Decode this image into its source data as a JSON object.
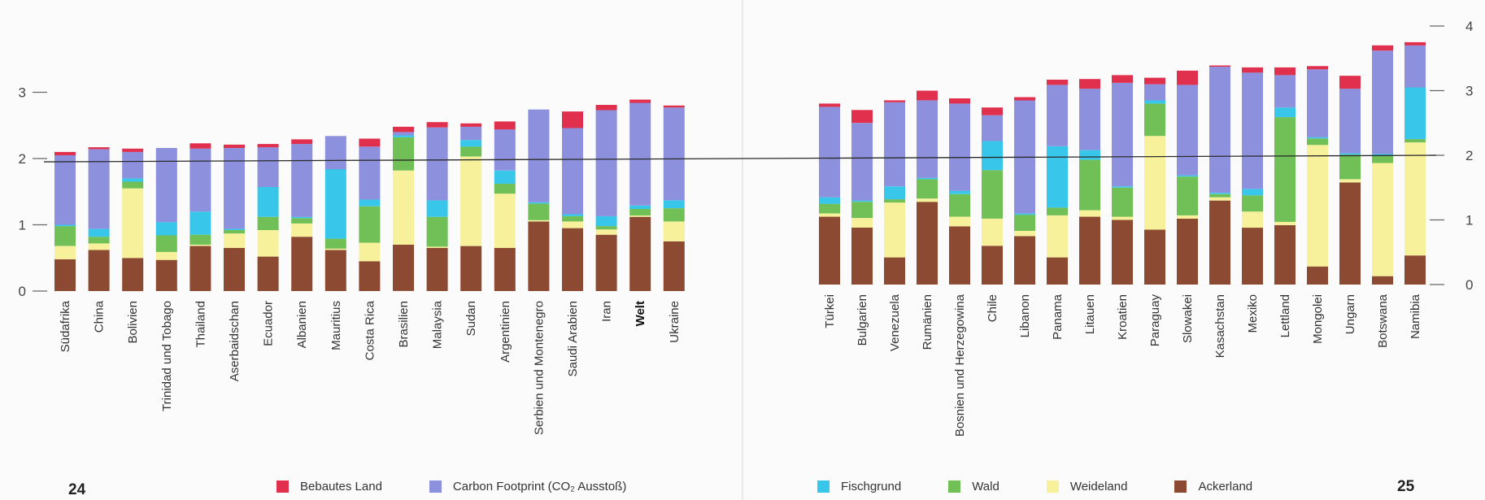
{
  "pages": {
    "left": "24",
    "right": "25"
  },
  "legend": {
    "left": [
      {
        "label": "Bebautes Land",
        "color": "#e0304e"
      },
      {
        "label": "Carbon Footprint (CO₂ Ausstoß)",
        "color": "#8d90dc"
      }
    ],
    "right": [
      {
        "label": "Fischgrund",
        "color": "#38c6ea"
      },
      {
        "label": "Wald",
        "color": "#70bf57"
      },
      {
        "label": "Weideland",
        "color": "#f6f19a"
      },
      {
        "label": "Ackerland",
        "color": "#8c4a32"
      }
    ]
  },
  "chart_data": [
    {
      "type": "bar",
      "stacked": true,
      "title": "",
      "xlabel": "",
      "ylabel": "",
      "ylim": [
        0,
        3
      ],
      "yticks": [
        0,
        1,
        2,
        3
      ],
      "reference_line": 1.95,
      "categories": [
        "Südafrika",
        "China",
        "Bolivien",
        "Trinidad und Tobago",
        "Thailand",
        "Aserbaidschan",
        "Ecuador",
        "Albanien",
        "Mauritius",
        "Costa Rica",
        "Brasilien",
        "Malaysia",
        "Sudan",
        "Argentinien",
        "Serbien und Montenegro",
        "Saudi Arabien",
        "Iran",
        "Welt",
        "Ukraine"
      ],
      "bold_category": "Welt",
      "series": [
        {
          "name": "Ackerland",
          "color": "#8c4a32",
          "values": [
            0.48,
            0.62,
            0.5,
            0.47,
            0.68,
            0.65,
            0.52,
            0.82,
            0.62,
            0.45,
            0.7,
            0.65,
            0.68,
            0.65,
            1.05,
            0.95,
            0.85,
            1.12,
            0.75
          ]
        },
        {
          "name": "Weideland",
          "color": "#f6f19a",
          "values": [
            0.2,
            0.1,
            1.05,
            0.12,
            0.02,
            0.22,
            0.4,
            0.2,
            0.02,
            0.28,
            1.12,
            0.02,
            1.35,
            0.82,
            0.02,
            0.1,
            0.08,
            0.02,
            0.3
          ]
        },
        {
          "name": "Wald",
          "color": "#70bf57",
          "values": [
            0.3,
            0.1,
            0.1,
            0.25,
            0.15,
            0.05,
            0.2,
            0.08,
            0.15,
            0.55,
            0.5,
            0.45,
            0.15,
            0.15,
            0.25,
            0.08,
            0.05,
            0.1,
            0.2
          ]
        },
        {
          "name": "Fischgrund",
          "color": "#38c6ea",
          "values": [
            0.02,
            0.12,
            0.05,
            0.2,
            0.35,
            0.02,
            0.45,
            0.02,
            1.05,
            0.1,
            0.03,
            0.25,
            0.1,
            0.2,
            0.02,
            0.03,
            0.15,
            0.05,
            0.12
          ]
        },
        {
          "name": "Carbon Footprint (CO₂ Ausstoß)",
          "color": "#8d90dc",
          "values": [
            1.05,
            1.2,
            0.4,
            1.12,
            0.95,
            1.22,
            0.6,
            1.1,
            0.5,
            0.8,
            0.05,
            1.1,
            0.2,
            0.62,
            1.4,
            1.3,
            1.6,
            1.55,
            1.4
          ]
        },
        {
          "name": "Bebautes Land",
          "color": "#e0304e",
          "values": [
            0.05,
            0.03,
            0.05,
            0.0,
            0.08,
            0.05,
            0.05,
            0.07,
            0.0,
            0.12,
            0.08,
            0.08,
            0.05,
            0.12,
            0.0,
            0.25,
            0.08,
            0.05,
            0.03
          ]
        }
      ]
    },
    {
      "type": "bar",
      "stacked": true,
      "title": "",
      "xlabel": "",
      "ylabel": "",
      "ylim": [
        0,
        4
      ],
      "yticks": [
        0,
        1,
        2,
        3,
        4
      ],
      "reference_line": 2.0,
      "categories": [
        "Türkei",
        "Bulgarien",
        "Venezuela",
        "Rumänien",
        "Bosnien und Herzegowina",
        "Chile",
        "Libanon",
        "Panama",
        "Litauen",
        "Kroatien",
        "Paraguay",
        "Slowakei",
        "Kasachstan",
        "Mexiko",
        "Lettland",
        "Mongolei",
        "Ungarn",
        "Botswana",
        "Namibia"
      ],
      "series": [
        {
          "name": "Ackerland",
          "color": "#8c4a32",
          "values": [
            1.05,
            0.88,
            0.42,
            1.28,
            0.9,
            0.6,
            0.75,
            0.42,
            1.05,
            1.0,
            0.85,
            1.02,
            1.3,
            0.88,
            0.92,
            0.28,
            1.58,
            0.13,
            0.45
          ]
        },
        {
          "name": "Weideland",
          "color": "#f6f19a",
          "values": [
            0.05,
            0.15,
            0.85,
            0.05,
            0.15,
            0.42,
            0.08,
            0.65,
            0.1,
            0.05,
            1.45,
            0.05,
            0.05,
            0.25,
            0.05,
            1.88,
            0.05,
            1.75,
            1.75
          ]
        },
        {
          "name": "Wald",
          "color": "#70bf57",
          "values": [
            0.15,
            0.25,
            0.05,
            0.3,
            0.35,
            0.75,
            0.25,
            0.12,
            0.78,
            0.45,
            0.5,
            0.6,
            0.05,
            0.25,
            1.62,
            0.1,
            0.38,
            0.12,
            0.05
          ]
        },
        {
          "name": "Fischgrund",
          "color": "#38c6ea",
          "values": [
            0.1,
            0.02,
            0.2,
            0.02,
            0.05,
            0.45,
            0.02,
            0.95,
            0.15,
            0.02,
            0.05,
            0.02,
            0.02,
            0.1,
            0.15,
            0.02,
            0.02,
            0.02,
            0.8
          ]
        },
        {
          "name": "Carbon Footprint (CO₂ Ausstoß)",
          "color": "#8d90dc",
          "values": [
            1.4,
            1.2,
            1.3,
            1.2,
            1.35,
            0.4,
            1.75,
            0.95,
            0.95,
            1.6,
            0.25,
            1.4,
            1.95,
            1.8,
            0.5,
            1.05,
            1.0,
            1.6,
            0.65
          ]
        },
        {
          "name": "Bebautes Land",
          "color": "#e0304e",
          "values": [
            0.05,
            0.2,
            0.03,
            0.15,
            0.08,
            0.12,
            0.05,
            0.08,
            0.15,
            0.12,
            0.1,
            0.22,
            0.02,
            0.08,
            0.12,
            0.05,
            0.2,
            0.08,
            0.05
          ]
        }
      ]
    }
  ]
}
